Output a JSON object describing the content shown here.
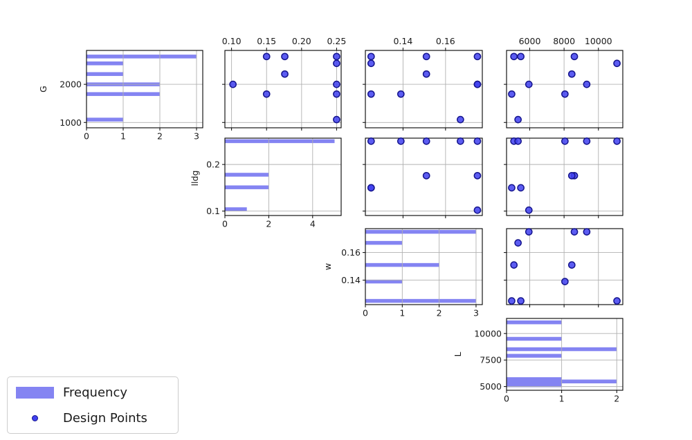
{
  "chart_data": {
    "type": "scatter",
    "subtype": "scatter-matrix-with-diagonal-histograms",
    "title": "",
    "variables": [
      "G",
      "lldg",
      "w",
      "L"
    ],
    "legend": {
      "position": "lower-left",
      "items": [
        {
          "label": "Frequency",
          "marker": "bar"
        },
        {
          "label": "Design Points",
          "marker": "circle"
        }
      ]
    },
    "colors": {
      "bar": "#8484f2",
      "point_fill": "#4040f0",
      "point_edge": "#14148c",
      "grid": "#b0b0b0",
      "spine": "#000000",
      "text": "#1a1a1a",
      "legend_border": "#cccccc"
    },
    "axes": {
      "G": {
        "range": [
          860,
          2890
        ],
        "col_ticks": [],
        "col_tick_labels": [],
        "row_ticks": [
          1000,
          2000
        ],
        "row_tick_labels": [
          "1000",
          "2000"
        ],
        "freq_range": [
          0,
          3.17
        ],
        "freq_ticks": [
          0,
          1,
          2,
          3
        ],
        "freq_tick_labels": [
          "0",
          "1",
          "2",
          "3"
        ]
      },
      "lldg": {
        "range": [
          0.0905,
          0.2565
        ],
        "col_ticks": [
          0.1,
          0.15,
          0.2,
          0.25
        ],
        "col_tick_labels": [
          "0.10",
          "0.15",
          "0.20",
          "0.25"
        ],
        "row_ticks": [
          0.1,
          0.2
        ],
        "row_tick_labels": [
          "0.1",
          "0.2"
        ],
        "freq_range": [
          0,
          5.3
        ],
        "freq_ticks": [
          0,
          2,
          4
        ],
        "freq_tick_labels": [
          "0",
          "2",
          "4"
        ]
      },
      "w": {
        "range": [
          0.1223,
          0.1773
        ],
        "col_ticks": [
          0.14,
          0.16
        ],
        "col_tick_labels": [
          "0.14",
          "0.16"
        ],
        "row_ticks": [
          0.14,
          0.16
        ],
        "row_tick_labels": [
          "0.14",
          "0.16"
        ],
        "freq_range": [
          0,
          3.17
        ],
        "freq_ticks": [
          0,
          1,
          2,
          3
        ],
        "freq_tick_labels": [
          "0",
          "1",
          "2",
          "3"
        ]
      },
      "L": {
        "range": [
          4650,
          11420
        ],
        "col_ticks": [
          6000,
          8000,
          10000
        ],
        "col_tick_labels": [
          "6000",
          "8000",
          "10000"
        ],
        "row_ticks": [
          5000,
          7500,
          10000
        ],
        "row_tick_labels": [
          "5000",
          "7500",
          "10000"
        ],
        "freq_range": [
          0,
          2.11
        ],
        "freq_ticks": [
          0,
          1,
          2
        ],
        "freq_tick_labels": [
          "0",
          "1",
          "2"
        ]
      }
    },
    "histograms": {
      "G": [
        [
          2730,
          3
        ],
        [
          2550,
          1
        ],
        [
          2270,
          1
        ],
        [
          2000,
          2
        ],
        [
          1745,
          2
        ],
        [
          1075,
          1
        ]
      ],
      "lldg": [
        [
          0.25,
          5
        ],
        [
          0.178,
          2
        ],
        [
          0.151,
          2
        ],
        [
          0.104,
          1
        ]
      ],
      "w": [
        [
          0.175,
          3
        ],
        [
          0.167,
          1
        ],
        [
          0.151,
          2
        ],
        [
          0.139,
          1
        ],
        [
          0.125,
          3
        ]
      ],
      "L": [
        [
          11050,
          1
        ],
        [
          9500,
          1
        ],
        [
          8520,
          2
        ],
        [
          7900,
          1
        ],
        [
          5700,
          1
        ],
        [
          5480,
          2
        ],
        [
          5300,
          1
        ],
        [
          5120,
          1
        ]
      ]
    },
    "design_points": [
      {
        "G": 2730,
        "lldg": 0.15,
        "w": 0.125,
        "L": 5480
      },
      {
        "G": 2730,
        "lldg": 0.176,
        "w": 0.175,
        "L": 8600
      },
      {
        "G": 2730,
        "lldg": 0.25,
        "w": 0.151,
        "L": 5080
      },
      {
        "G": 2550,
        "lldg": 0.25,
        "w": 0.125,
        "L": 11080
      },
      {
        "G": 2270,
        "lldg": 0.176,
        "w": 0.151,
        "L": 8450
      },
      {
        "G": 2000,
        "lldg": 0.102,
        "w": 0.175,
        "L": 5950
      },
      {
        "G": 2000,
        "lldg": 0.25,
        "w": 0.175,
        "L": 9320
      },
      {
        "G": 1745,
        "lldg": 0.15,
        "w": 0.125,
        "L": 4950
      },
      {
        "G": 1745,
        "lldg": 0.25,
        "w": 0.139,
        "L": 8050
      },
      {
        "G": 1075,
        "lldg": 0.25,
        "w": 0.167,
        "L": 5320
      }
    ]
  }
}
